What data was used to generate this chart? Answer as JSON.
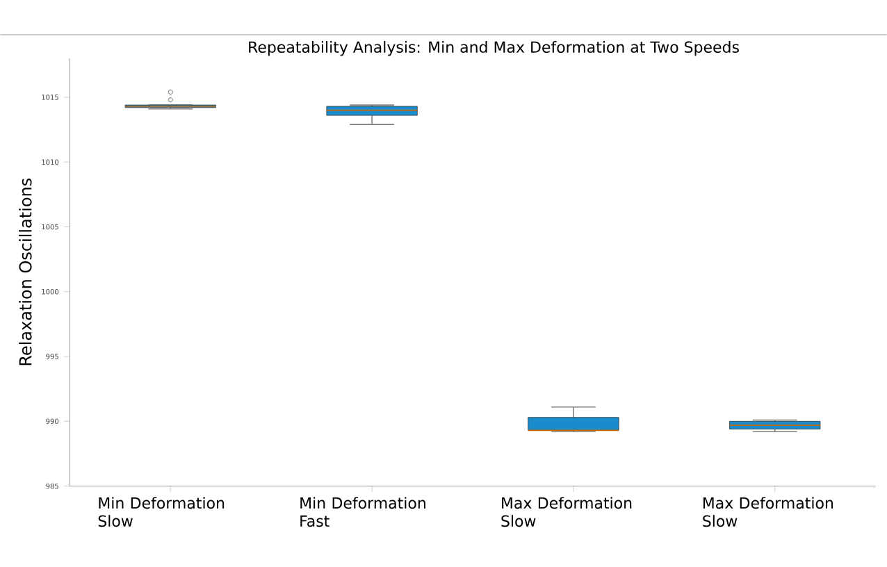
{
  "chart_data": {
    "type": "box",
    "title": "Repeatability Analysis: Min and Max Deformation at Two Speeds",
    "ylabel": "Relaxation Oscillations",
    "categories": [
      "Min Deformation Slow",
      "Min Deformation Fast",
      "Max Deformation Slow",
      "Max Deformation Slow"
    ],
    "ylim": [
      985,
      1018
    ],
    "yticks": [
      985,
      990,
      995,
      1000,
      1005,
      1010,
      1015
    ],
    "series": [
      {
        "color": "#1a8ccc",
        "boxes": [
          {
            "low": 1014.1,
            "q1": 1014.2,
            "median": 1014.3,
            "q3": 1014.4,
            "high": 1014.4,
            "outliers": [
              1014.8,
              1015.4
            ]
          },
          {
            "low": 1012.9,
            "q1": 1013.6,
            "median": 1014.0,
            "q3": 1014.3,
            "high": 1014.4
          },
          {
            "low": 989.2,
            "q1": 989.3,
            "median": 989.3,
            "q3": 990.3,
            "high": 991.1
          },
          {
            "low": 989.2,
            "q1": 989.4,
            "median": 989.7,
            "q3": 990.0,
            "high": 990.1
          }
        ]
      }
    ]
  }
}
